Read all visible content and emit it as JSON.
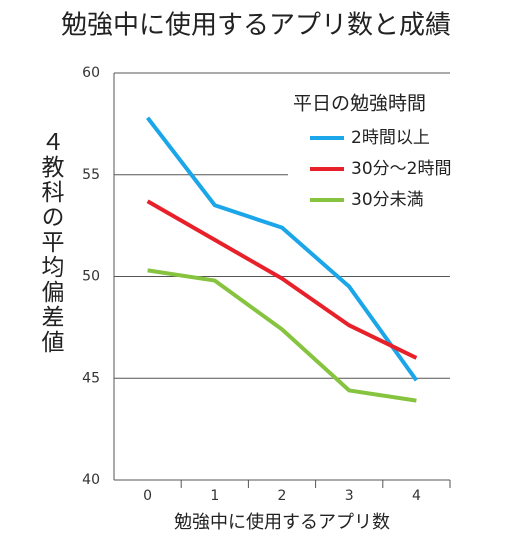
{
  "chart_data": {
    "type": "line",
    "title": "勉強中に使用するアプリ数と成績",
    "x_label": "勉強中に使用するアプリ数",
    "y_label": "４教科の平均偏差値",
    "legend_title": "平日の勉強時間",
    "categories": [
      "0",
      "1",
      "2",
      "3",
      "4"
    ],
    "series": [
      {
        "name": "2時間以上",
        "color": "#1aa6e8",
        "values": [
          57.8,
          53.5,
          52.4,
          49.5,
          44.9
        ]
      },
      {
        "name": "30分〜2時間",
        "color": "#e8202a",
        "values": [
          53.7,
          51.8,
          49.9,
          47.6,
          46.0
        ]
      },
      {
        "name": "30分未満",
        "color": "#86c43f",
        "values": [
          50.3,
          49.8,
          47.4,
          44.4,
          43.9
        ]
      }
    ],
    "ylim": [
      40,
      60
    ],
    "yticks": [
      40,
      45,
      50,
      55,
      60
    ],
    "grid": true
  }
}
